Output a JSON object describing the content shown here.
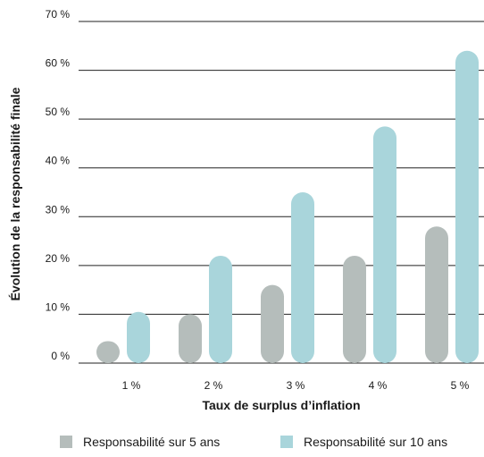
{
  "chart_data": {
    "type": "bar",
    "title": "",
    "xlabel": "Taux de surplus d’inflation",
    "ylabel": "Évolution de la responsabilité finale",
    "categories": [
      "1 %",
      "2 %",
      "3 %",
      "4 %",
      "5 %"
    ],
    "yticks": [
      "0 %",
      "10 %",
      "20 %",
      "30 %",
      "40 %",
      "50 %",
      "60 %",
      "70 %"
    ],
    "ylim": [
      0,
      70
    ],
    "grid": true,
    "legend_position": "bottom",
    "series": [
      {
        "name": "Responsabilité sur 5 ans",
        "color": "#b5bdbb",
        "values": [
          4.5,
          10,
          16,
          22,
          28
        ]
      },
      {
        "name": "Responsabilité sur 10 ans",
        "color": "#a9d5db",
        "values": [
          10.5,
          22,
          35,
          48.5,
          64
        ]
      }
    ]
  }
}
